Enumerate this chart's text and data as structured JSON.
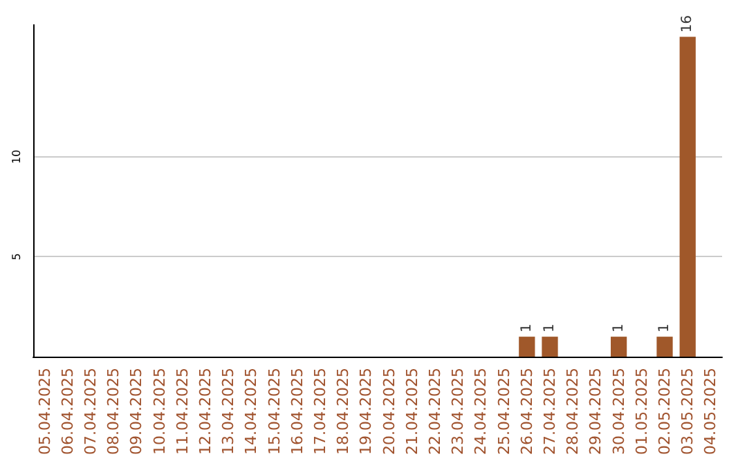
{
  "chart_data": {
    "type": "bar",
    "categories": [
      "05.04.2025",
      "06.04.2025",
      "07.04.2025",
      "08.04.2025",
      "09.04.2025",
      "10.04.2025",
      "11.04.2025",
      "12.04.2025",
      "13.04.2025",
      "14.04.2025",
      "15.04.2025",
      "16.04.2025",
      "17.04.2025",
      "18.04.2025",
      "19.04.2025",
      "20.04.2025",
      "21.04.2025",
      "22.04.2025",
      "23.04.2025",
      "24.04.2025",
      "25.04.2025",
      "26.04.2025",
      "27.04.2025",
      "28.04.2025",
      "29.04.2025",
      "30.04.2025",
      "01.05.2025",
      "02.05.2025",
      "03.05.2025",
      "04.05.2025"
    ],
    "values": [
      0,
      0,
      0,
      0,
      0,
      0,
      0,
      0,
      0,
      0,
      0,
      0,
      0,
      0,
      0,
      0,
      0,
      0,
      0,
      0,
      0,
      1,
      1,
      0,
      0,
      1,
      0,
      1,
      16,
      0
    ],
    "value_labels": [
      null,
      null,
      null,
      null,
      null,
      null,
      null,
      null,
      null,
      null,
      null,
      null,
      null,
      null,
      null,
      null,
      null,
      null,
      null,
      null,
      null,
      "1",
      "1",
      null,
      null,
      "1",
      null,
      "1",
      "16",
      null
    ],
    "color": "#a0582a",
    "ylim": [
      0,
      16.6
    ],
    "yticks": [
      5,
      10
    ],
    "grid": "y"
  }
}
